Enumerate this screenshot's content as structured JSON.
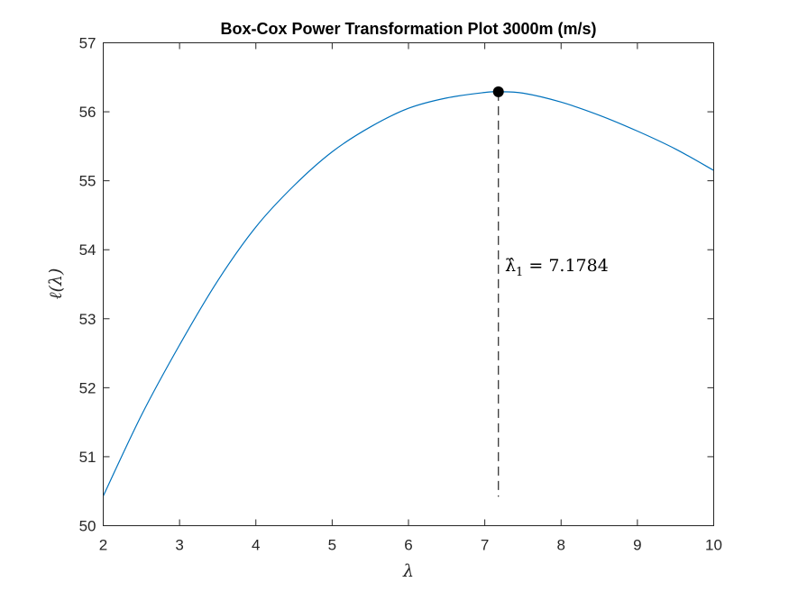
{
  "chart_data": {
    "type": "line",
    "title": "Box-Cox Power Transformation Plot 3000m (m/s)",
    "xlabel": "λ",
    "ylabel": "ℓ(λ)",
    "xlim": [
      2,
      10
    ],
    "ylim": [
      50,
      57
    ],
    "xticks": [
      "2",
      "3",
      "4",
      "5",
      "6",
      "7",
      "8",
      "9",
      "10"
    ],
    "yticks": [
      "50",
      "51",
      "52",
      "53",
      "54",
      "55",
      "56",
      "57"
    ],
    "grid": false,
    "legend": "none",
    "series": [
      {
        "color": "#0072BD",
        "x": [
          2.0,
          2.5,
          3.0,
          3.5,
          4.0,
          4.5,
          5.0,
          5.5,
          6.0,
          6.5,
          7.0,
          7.1784,
          7.5,
          8.0,
          8.5,
          9.0,
          9.5,
          10.0
        ],
        "y": [
          50.43,
          51.6,
          52.62,
          53.55,
          54.33,
          54.93,
          55.42,
          55.78,
          56.05,
          56.2,
          56.28,
          56.29,
          56.27,
          56.14,
          55.95,
          55.72,
          55.46,
          55.15
        ]
      }
    ],
    "marker": {
      "x": 7.1784,
      "y": 56.29,
      "color": "#000000"
    },
    "vline": {
      "x": 7.1784,
      "y_from": 50.42,
      "y_to": 56.29,
      "style": "dashed",
      "color": "#262626"
    },
    "annotation": {
      "lambda_symbol": "λ̂",
      "subscript": "1",
      "equals": " = ",
      "value": "7.1784"
    }
  }
}
